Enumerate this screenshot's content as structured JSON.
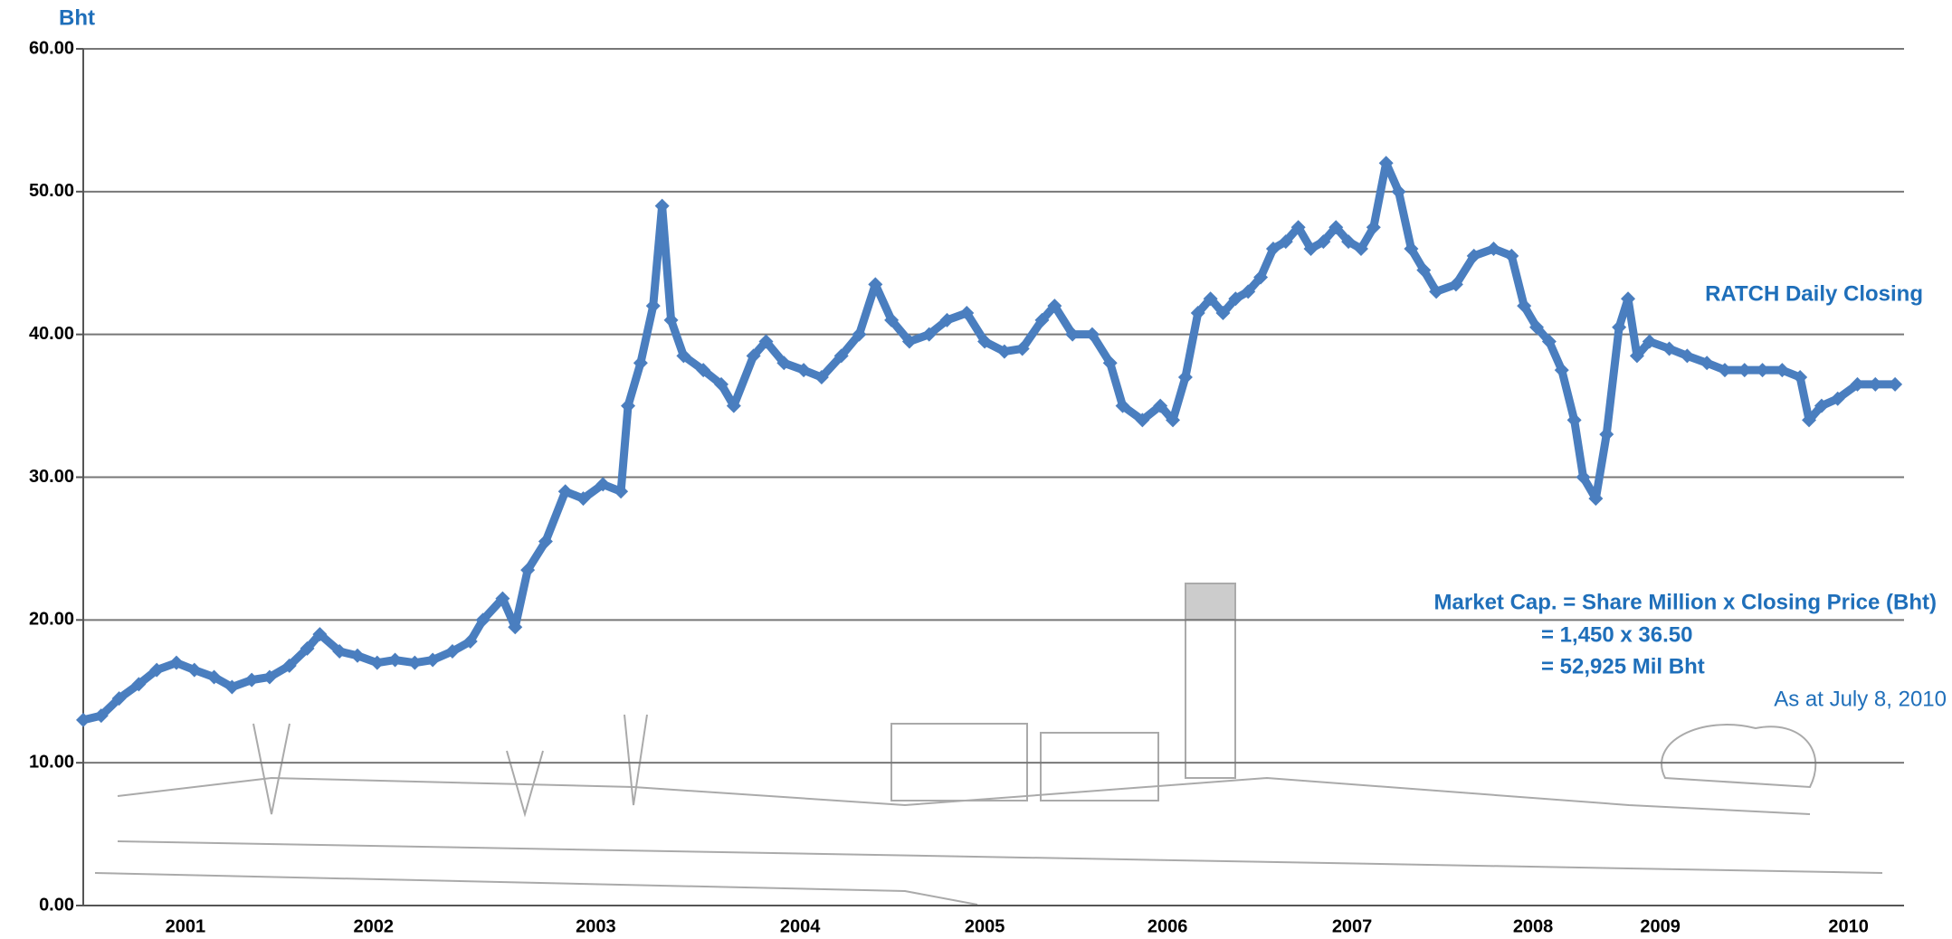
{
  "chart_data": {
    "type": "line",
    "y_label": "Bht",
    "annotations": [
      "Market Cap. = Share Million x Closing Price (Bht)",
      "= 1,450 x 36.50",
      "= 52,925 Mil Bht",
      "As at July 8, 2010"
    ],
    "xlim": [
      2000.45,
      2010.61
    ],
    "xticks": [
      {
        "value": 2001.02,
        "label": "2001"
      },
      {
        "value": 2002.07,
        "label": "2002"
      },
      {
        "value": 2003.31,
        "label": "2003"
      },
      {
        "value": 2004.45,
        "label": "2004"
      },
      {
        "value": 2005.48,
        "label": "2005"
      },
      {
        "value": 2006.5,
        "label": "2006"
      },
      {
        "value": 2007.53,
        "label": "2007"
      },
      {
        "value": 2008.54,
        "label": "2008"
      },
      {
        "value": 2009.25,
        "label": "2009"
      },
      {
        "value": 2010.3,
        "label": "2010"
      }
    ],
    "ylim": [
      0,
      60
    ],
    "yticks": [
      {
        "value": 0,
        "label": "0.00"
      },
      {
        "value": 10,
        "label": "10.00"
      },
      {
        "value": 20,
        "label": "20.00"
      },
      {
        "value": 30,
        "label": "30.00"
      },
      {
        "value": 40,
        "label": "40.00"
      },
      {
        "value": 50,
        "label": "50.00"
      },
      {
        "value": 60,
        "label": "60.00"
      }
    ],
    "grid": true,
    "x": [
      2000.45,
      2000.55,
      2000.65,
      2000.76,
      2000.86,
      2000.97,
      2001.07,
      2001.18,
      2001.28,
      2001.39,
      2001.49,
      2001.6,
      2001.7,
      2001.77,
      2001.88,
      2001.98,
      2002.09,
      2002.19,
      2002.3,
      2002.4,
      2002.51,
      2002.61,
      2002.68,
      2002.79,
      2002.86,
      2002.93,
      2003.03,
      2003.14,
      2003.24,
      2003.35,
      2003.45,
      2003.49,
      2003.56,
      2003.63,
      2003.68,
      2003.73,
      2003.8,
      2003.91,
      2004.01,
      2004.08,
      2004.19,
      2004.26,
      2004.36,
      2004.47,
      2004.57,
      2004.68,
      2004.78,
      2004.87,
      2004.96,
      2005.06,
      2005.17,
      2005.27,
      2005.38,
      2005.48,
      2005.59,
      2005.69,
      2005.8,
      2005.87,
      2005.97,
      2006.08,
      2006.18,
      2006.25,
      2006.36,
      2006.46,
      2006.53,
      2006.6,
      2006.67,
      2006.74,
      2006.81,
      2006.88,
      2006.95,
      2007.02,
      2007.09,
      2007.16,
      2007.23,
      2007.3,
      2007.37,
      2007.44,
      2007.51,
      2007.58,
      2007.65,
      2007.72,
      2007.79,
      2007.86,
      2007.93,
      2008.0,
      2008.11,
      2008.21,
      2008.32,
      2008.42,
      2008.49,
      2008.56,
      2008.63,
      2008.7,
      2008.77,
      2008.82,
      2008.89,
      2008.95,
      2009.02,
      2009.07,
      2009.12,
      2009.19,
      2009.3,
      2009.4,
      2009.51,
      2009.61,
      2009.72,
      2009.82,
      2009.93,
      2010.03,
      2010.08,
      2010.15,
      2010.24,
      2010.35,
      2010.45,
      2010.56
    ],
    "series": [
      {
        "name": "RATCH Daily Closing",
        "color": "#4a7ebf",
        "values": [
          13.0,
          13.3,
          14.5,
          15.5,
          16.5,
          17.0,
          16.5,
          16.0,
          15.3,
          15.8,
          16.0,
          16.8,
          18.0,
          19.0,
          17.8,
          17.5,
          17.0,
          17.2,
          17.0,
          17.2,
          17.8,
          18.5,
          20.0,
          21.5,
          19.5,
          23.5,
          25.5,
          29.0,
          28.5,
          29.5,
          29.0,
          35.0,
          38.0,
          42.0,
          49.0,
          41.0,
          38.5,
          37.5,
          36.5,
          35.0,
          38.5,
          39.5,
          38.0,
          37.5,
          37.0,
          38.5,
          40.0,
          43.5,
          41.0,
          39.5,
          40.0,
          41.0,
          41.5,
          39.5,
          38.8,
          39.0,
          41.0,
          42.0,
          40.0,
          40.0,
          38.0,
          35.0,
          34.0,
          35.0,
          34.0,
          37.0,
          41.5,
          42.5,
          41.5,
          42.5,
          43.0,
          44.0,
          46.0,
          46.5,
          47.5,
          46.0,
          46.5,
          47.5,
          46.5,
          46.0,
          47.5,
          52.0,
          50.0,
          46.0,
          44.5,
          43.0,
          43.5,
          45.5,
          46.0,
          45.5,
          42.0,
          40.5,
          39.5,
          37.5,
          34.0,
          30.0,
          28.5,
          33.0,
          40.5,
          42.5,
          38.5,
          39.5,
          39.0,
          38.5,
          38.0,
          37.5,
          37.5,
          37.5,
          37.5,
          37.0,
          34.0,
          35.0,
          35.5,
          36.5,
          36.5,
          36.5
        ]
      }
    ]
  }
}
